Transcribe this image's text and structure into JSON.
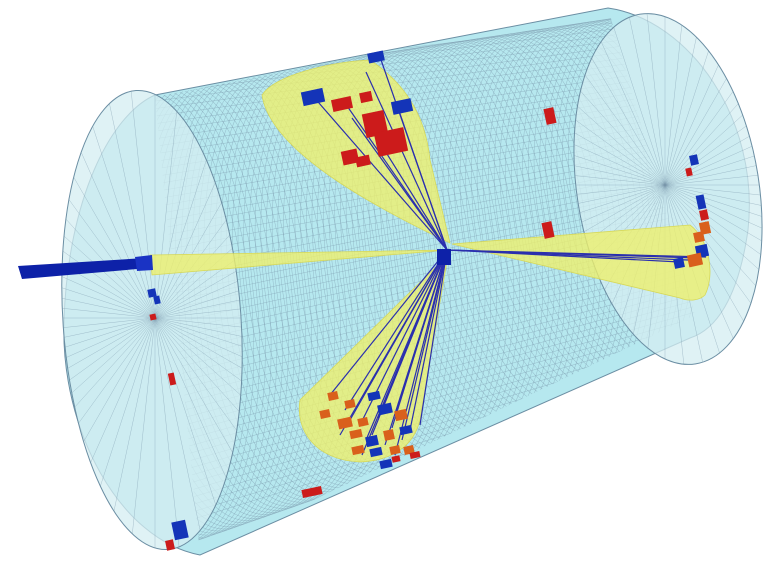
{
  "scene": {
    "subject": "particle-collision-event-display",
    "colors": {
      "background": "#ffffff",
      "barrel_fill": "#a9e4ec",
      "barrel_mesh": "#6b8ea3",
      "endcap_fill": "#d4eef2",
      "jet_cone": "#eef06a",
      "track": "#2a2fae",
      "em_deposit": "#cc1b1b",
      "had_deposit": "#d9601c",
      "muon_deposit": "#1434b8",
      "missing_energy_bar": "#0d21a8"
    }
  }
}
